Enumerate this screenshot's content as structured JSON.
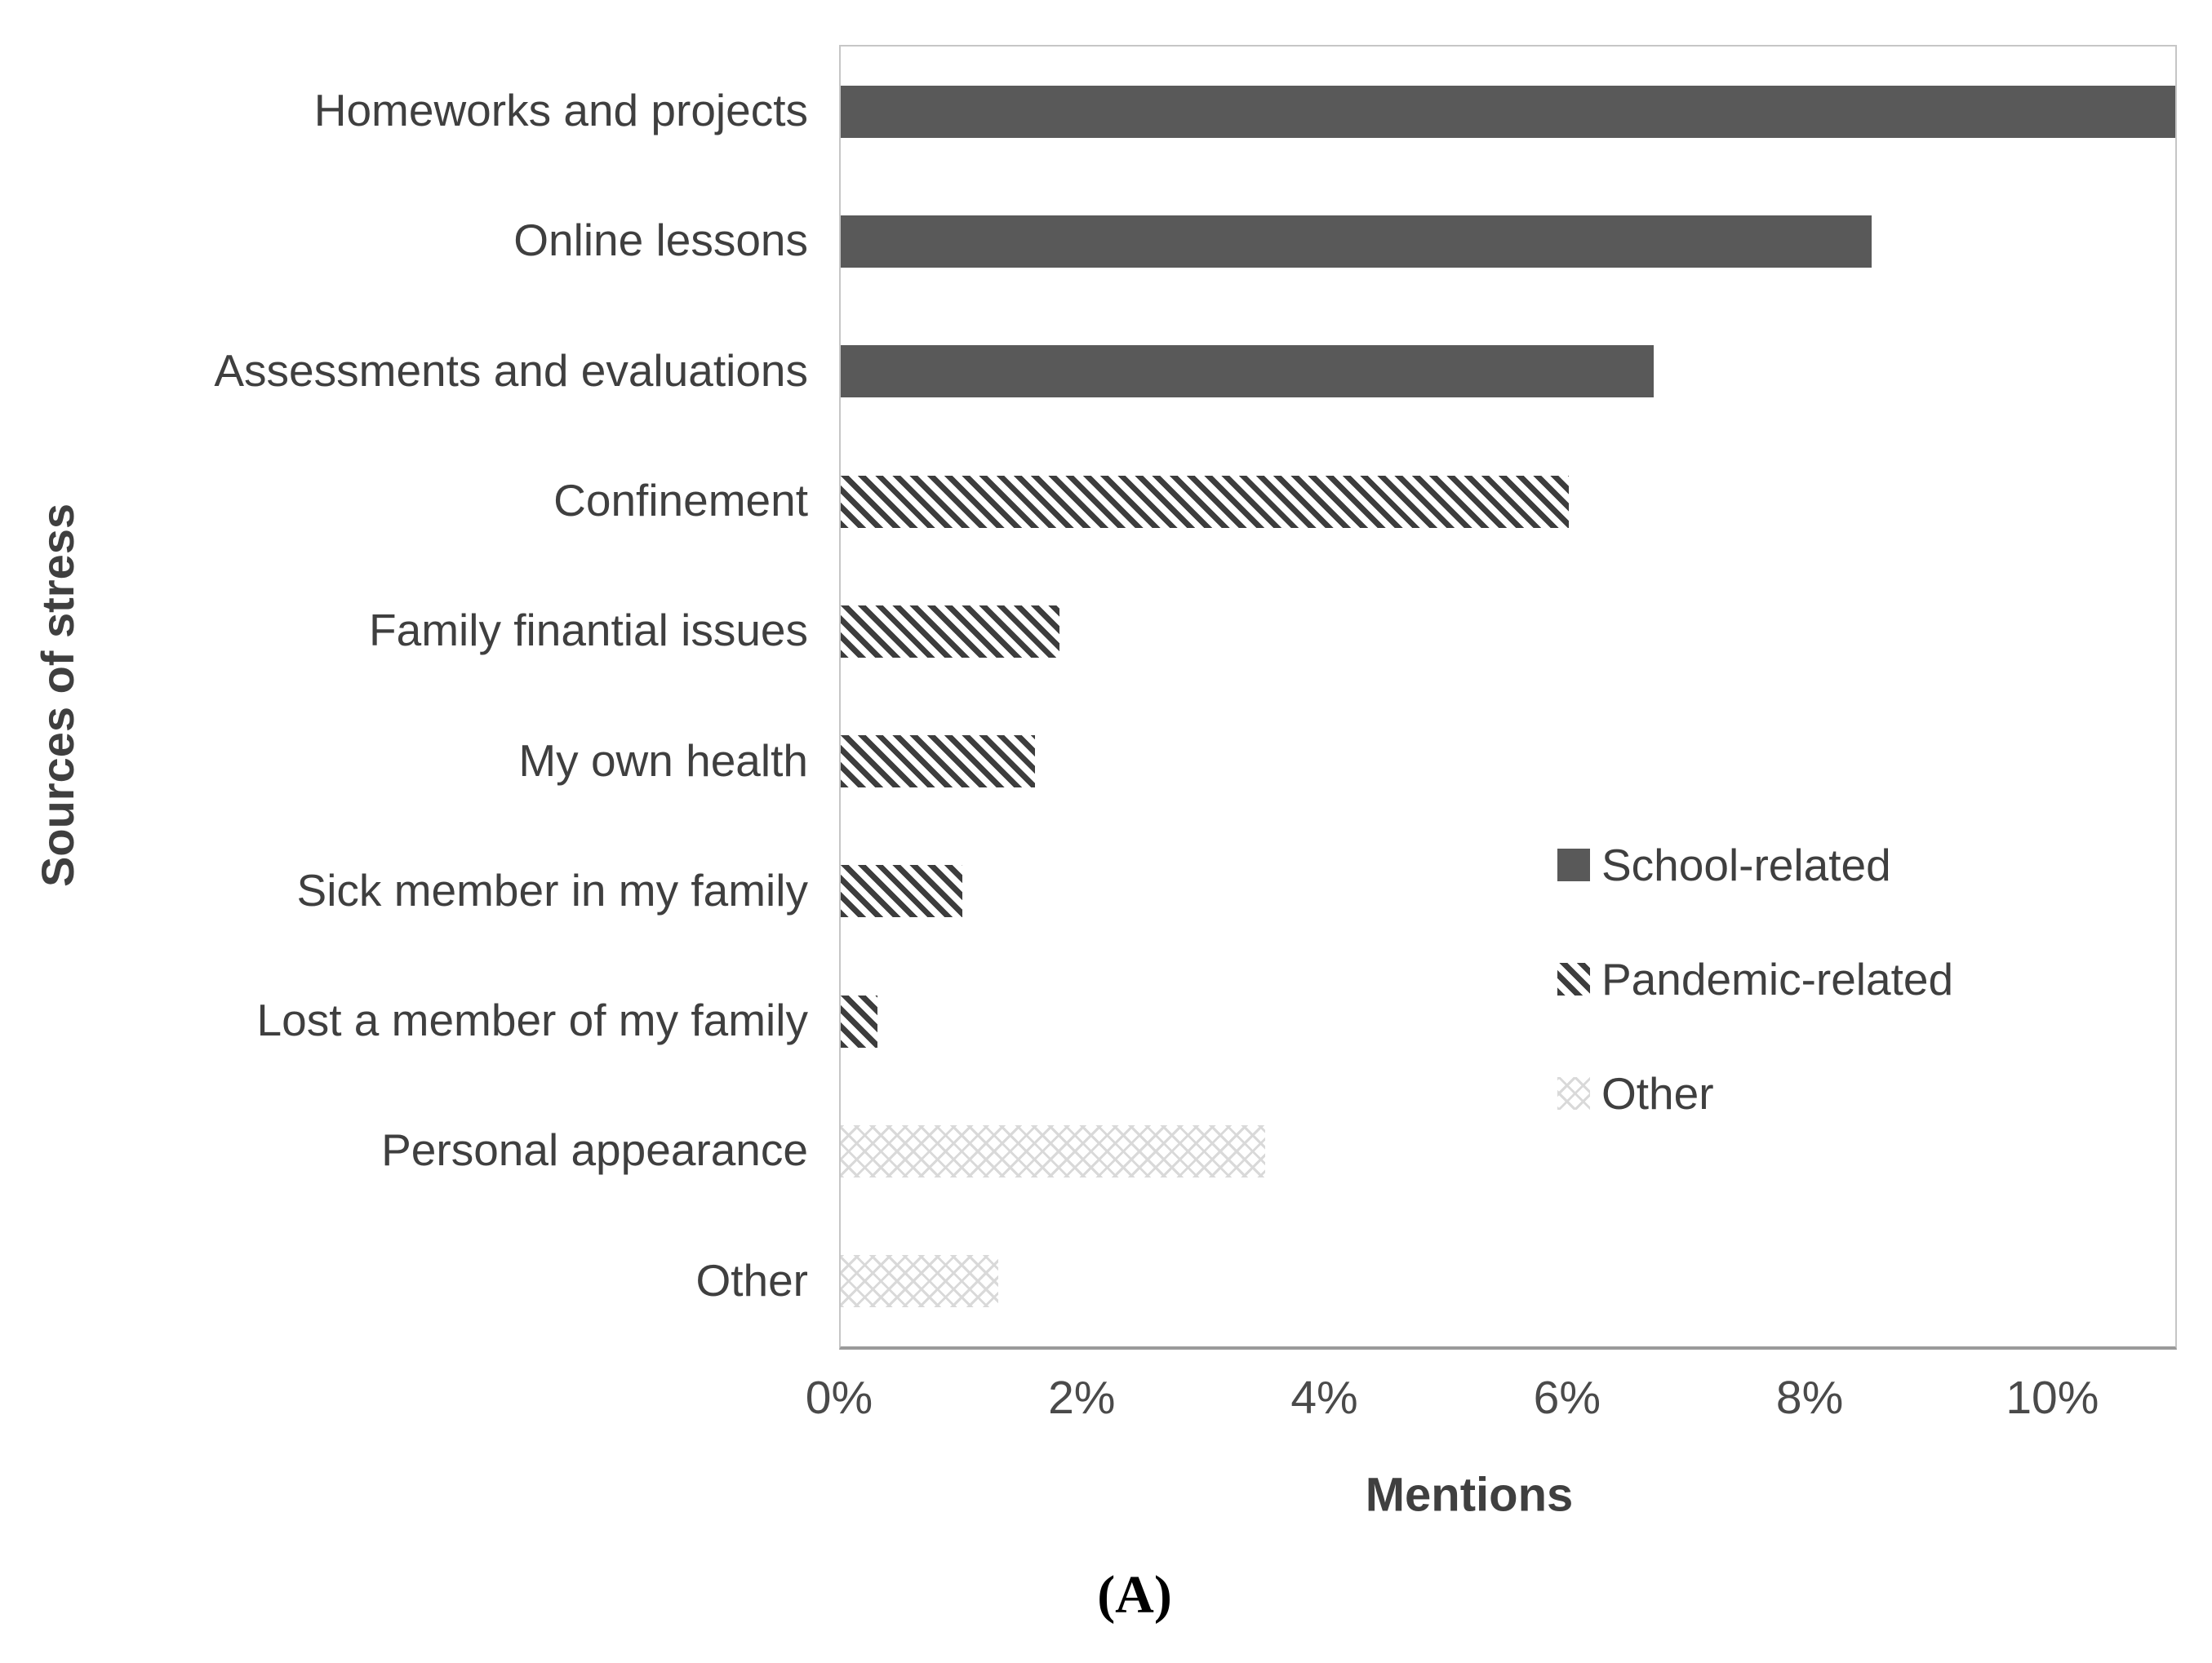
{
  "chart_data": {
    "type": "bar",
    "orientation": "horizontal",
    "title": "",
    "xlabel": "Mentions",
    "ylabel": "Sources of stress",
    "xlim": [
      0,
      11
    ],
    "x_ticks": [
      "0%",
      "2%",
      "4%",
      "6%",
      "8%",
      "10%"
    ],
    "x_tick_values": [
      0,
      2,
      4,
      6,
      8,
      10
    ],
    "grid": false,
    "categories": [
      "Homeworks and projects",
      "Online lessons",
      "Assessments and evaluations",
      "Confinement",
      "Family finantial issues",
      "My own health",
      "Sick member in my family",
      "Lost a member of my family",
      "Personal appearance",
      "Other"
    ],
    "values": [
      11.0,
      8.5,
      6.7,
      6.0,
      1.8,
      1.6,
      1.0,
      0.3,
      3.5,
      1.3
    ],
    "value_unit": "%",
    "groups": [
      "school",
      "school",
      "school",
      "pandemic",
      "pandemic",
      "pandemic",
      "pandemic",
      "pandemic",
      "other",
      "other"
    ],
    "legend": [
      {
        "id": "school",
        "label": "School-related",
        "pattern": "solid"
      },
      {
        "id": "pandemic",
        "label": "Pandemic-related",
        "pattern": "hatch"
      },
      {
        "id": "other",
        "label": "Other",
        "pattern": "cross"
      }
    ],
    "legend_position": "inside-right",
    "colors": {
      "solid_bar": "#595959",
      "hatch_stripe": "#3d3d3d",
      "cross_line": "#d9d9d9",
      "text": "#3f3f3f",
      "plot_border": "#c6c6c6",
      "axis_line": "#9a9a9a"
    }
  },
  "caption": "(A)"
}
